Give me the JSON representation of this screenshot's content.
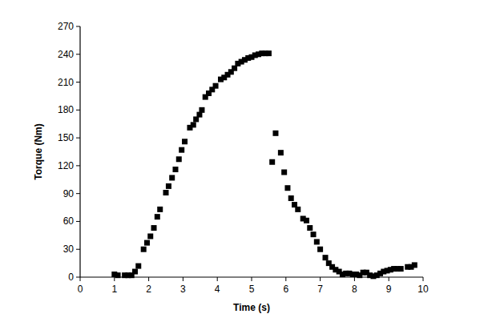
{
  "chart_data": {
    "type": "scatter",
    "x_label": "Time (s)",
    "y_label": "Torque (Nm)",
    "x": [
      1.0,
      1.1,
      1.3,
      1.4,
      1.5,
      1.6,
      1.7,
      1.85,
      1.95,
      2.05,
      2.15,
      2.25,
      2.33,
      2.5,
      2.58,
      2.68,
      2.78,
      2.88,
      2.96,
      3.05,
      3.2,
      3.3,
      3.38,
      3.48,
      3.55,
      3.65,
      3.75,
      3.85,
      3.95,
      4.1,
      4.2,
      4.3,
      4.4,
      4.5,
      4.6,
      4.7,
      4.8,
      4.9,
      5.0,
      5.1,
      5.2,
      5.3,
      5.4,
      5.5,
      5.6,
      5.7,
      5.85,
      5.95,
      6.05,
      6.15,
      6.25,
      6.35,
      6.5,
      6.6,
      6.7,
      6.8,
      6.9,
      7.0,
      7.15,
      7.25,
      7.35,
      7.45,
      7.55,
      7.65,
      7.75,
      7.85,
      7.95,
      8.05,
      8.15,
      8.25,
      8.35,
      8.45,
      8.55,
      8.65,
      8.75,
      8.85,
      8.95,
      9.05,
      9.15,
      9.25,
      9.35,
      9.55,
      9.65,
      9.75
    ],
    "values": [
      3,
      2,
      2,
      2,
      2,
      6,
      12,
      30,
      37,
      44,
      53,
      65,
      73,
      91,
      98,
      107,
      116,
      127,
      137,
      146,
      161,
      164,
      170,
      175,
      180,
      194,
      198,
      202,
      206,
      213,
      215,
      218,
      221,
      225,
      230,
      232,
      234,
      236,
      237,
      239,
      240,
      241,
      241,
      241,
      124,
      155,
      134,
      113,
      96,
      85,
      78,
      73,
      63,
      61,
      53,
      46,
      38,
      30,
      21,
      15,
      11,
      8,
      6,
      3,
      4,
      4,
      3,
      3,
      2,
      5,
      5,
      2,
      1,
      2,
      4,
      6,
      7,
      8,
      9,
      9,
      9,
      11,
      11,
      13
    ],
    "color": "#000000",
    "marker": "square",
    "grid": false,
    "xlim": [
      0,
      10
    ],
    "xticks": [
      0,
      1,
      2,
      3,
      4,
      5,
      6,
      7,
      8,
      9,
      10
    ],
    "ylim": [
      0,
      270
    ],
    "yticks": [
      0,
      30,
      60,
      90,
      120,
      150,
      180,
      210,
      240,
      270
    ]
  }
}
